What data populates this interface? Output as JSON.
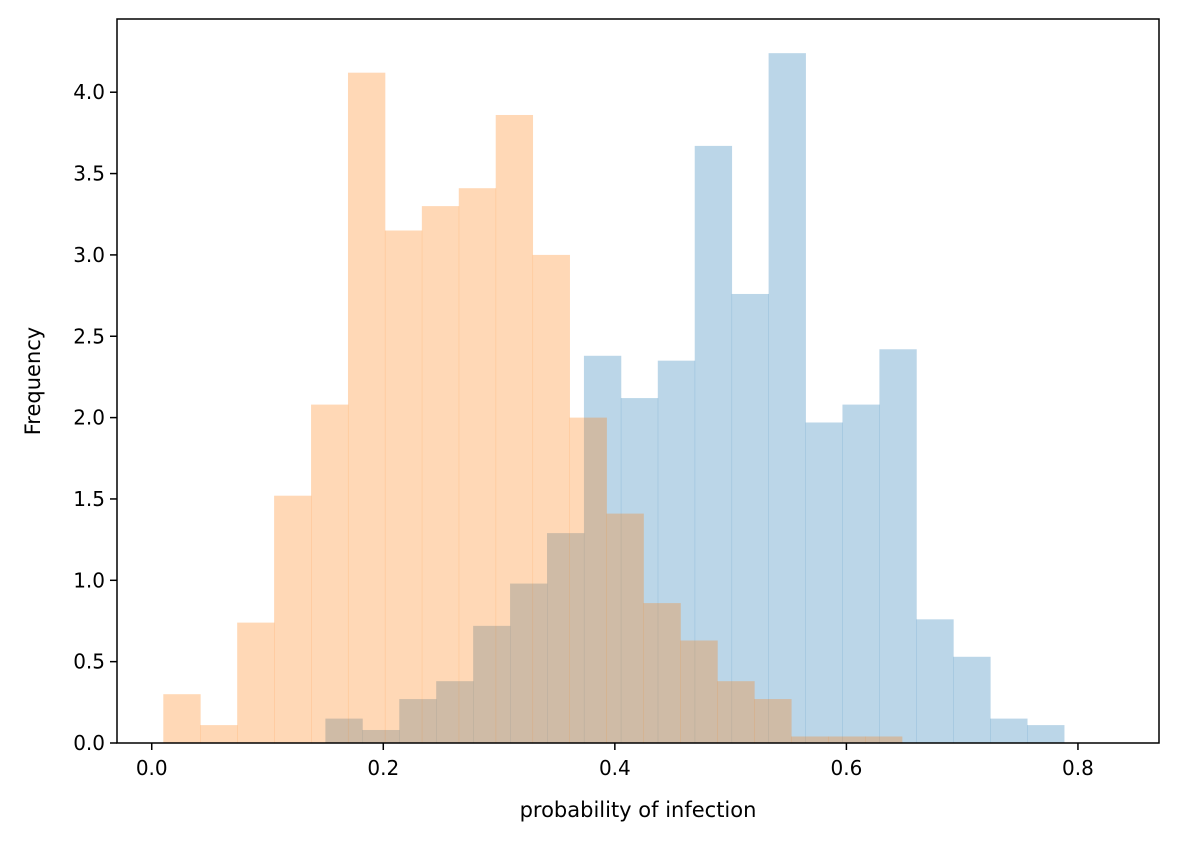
{
  "chart_data": {
    "type": "histogram",
    "title": "",
    "xlabel": "probability of infection",
    "ylabel": "Frequency",
    "xlim": [
      -0.03,
      0.87
    ],
    "ylim": [
      0.0,
      4.45
    ],
    "grid": false,
    "legend": "none",
    "x_ticks": [
      {
        "value": 0.0,
        "label": "0.0"
      },
      {
        "value": 0.2,
        "label": "0.2"
      },
      {
        "value": 0.4,
        "label": "0.4"
      },
      {
        "value": 0.6,
        "label": "0.6"
      },
      {
        "value": 0.8,
        "label": "0.8"
      }
    ],
    "y_ticks": [
      {
        "value": 0.0,
        "label": "0.0"
      },
      {
        "value": 0.5,
        "label": "0.5"
      },
      {
        "value": 1.0,
        "label": "1.0"
      },
      {
        "value": 1.5,
        "label": "1.5"
      },
      {
        "value": 2.0,
        "label": "2.0"
      },
      {
        "value": 2.5,
        "label": "2.5"
      },
      {
        "value": 3.0,
        "label": "3.0"
      },
      {
        "value": 3.5,
        "label": "3.5"
      },
      {
        "value": 4.0,
        "label": "4.0"
      }
    ],
    "series": [
      {
        "color": "#1f77b4",
        "opacity": 0.3,
        "bin_start": 0.15,
        "bin_width": 0.0319,
        "values": [
          0.15,
          0.08,
          0.27,
          0.38,
          0.72,
          0.98,
          1.29,
          2.38,
          2.12,
          2.35,
          3.67,
          2.76,
          4.24,
          1.97,
          2.08,
          2.42,
          0.76,
          0.53,
          0.15,
          0.11
        ]
      },
      {
        "color": "#ff7f0e",
        "opacity": 0.3,
        "bin_start": 0.01,
        "bin_width": 0.0319,
        "values": [
          0.3,
          0.11,
          0.74,
          1.52,
          2.08,
          4.12,
          3.15,
          3.3,
          3.41,
          3.86,
          3.0,
          2.0,
          1.41,
          0.86,
          0.63,
          0.38,
          0.27,
          0.04,
          0.04,
          0.04
        ]
      }
    ]
  }
}
